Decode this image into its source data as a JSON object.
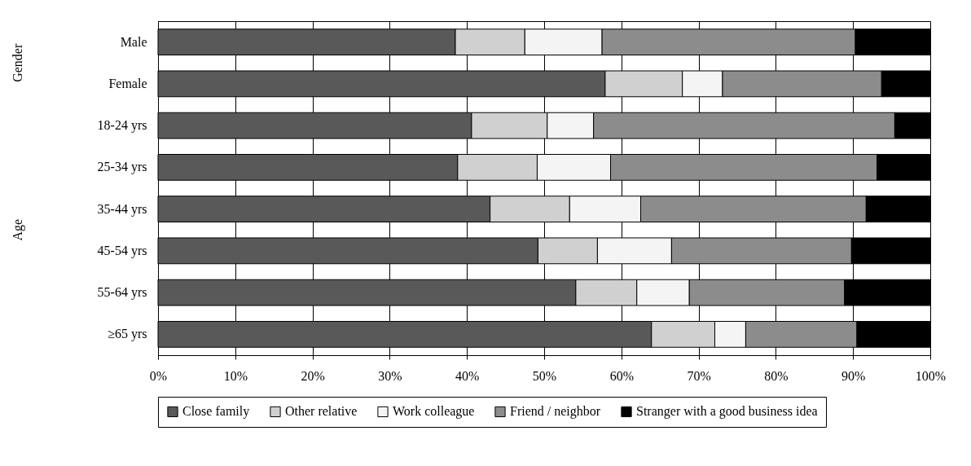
{
  "chart_data": {
    "type": "bar",
    "orientation": "horizontal",
    "stacked": true,
    "categories": [
      "Male",
      "Female",
      "18-24 yrs",
      "25-34 yrs",
      "35-44 yrs",
      "45-54 yrs",
      "55-64 yrs",
      "≥65 yrs"
    ],
    "series": [
      {
        "name": "Close family",
        "color": "#595959",
        "values": [
          38.5,
          57.9,
          40.6,
          38.8,
          43.0,
          49.2,
          54.1,
          63.9
        ]
      },
      {
        "name": "Other relative",
        "color": "#d0d0d0",
        "values": [
          9.0,
          10.0,
          9.8,
          10.3,
          10.3,
          7.7,
          7.9,
          8.2
        ]
      },
      {
        "name": "Work colleague",
        "color": "#f4f4f4",
        "values": [
          10.0,
          5.2,
          6.0,
          9.5,
          9.2,
          9.6,
          6.8,
          4.0
        ]
      },
      {
        "name": "Friend / neighbor",
        "color": "#8c8c8c",
        "values": [
          32.8,
          20.6,
          39.0,
          34.5,
          29.2,
          23.3,
          20.1,
          14.4
        ]
      },
      {
        "name": "Stranger with a good business idea",
        "color": "#000000",
        "values": [
          9.7,
          6.3,
          4.6,
          6.9,
          8.3,
          10.2,
          11.1,
          9.5
        ]
      }
    ],
    "xlim": [
      0,
      100
    ],
    "xticks": [
      {
        "value": 0,
        "label": "0%"
      },
      {
        "value": 10,
        "label": "10%"
      },
      {
        "value": 20,
        "label": "20%"
      },
      {
        "value": 30,
        "label": "30%"
      },
      {
        "value": 40,
        "label": "40%"
      },
      {
        "value": 50,
        "label": "50%"
      },
      {
        "value": 60,
        "label": "60%"
      },
      {
        "value": 70,
        "label": "70%"
      },
      {
        "value": 80,
        "label": "80%"
      },
      {
        "value": 90,
        "label": "90%"
      },
      {
        "value": 100,
        "label": "100%"
      }
    ],
    "annotations": [
      "Gender",
      "Age"
    ],
    "grid": "x",
    "legend": "bottom"
  }
}
